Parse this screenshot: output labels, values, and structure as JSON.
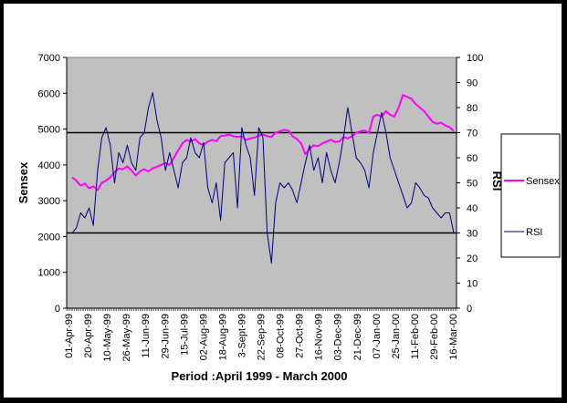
{
  "chart_data": {
    "type": "line",
    "xlabel": "Period :April 1999 - March 2000",
    "y_left_label": "Sensex",
    "y_right_label": "RSI",
    "y_left_lim": [
      0,
      7000
    ],
    "y_left_ticks": [
      "0",
      "1000",
      "2000",
      "3000",
      "4000",
      "5000",
      "6000",
      "7000"
    ],
    "y_right_lim": [
      0,
      100
    ],
    "y_right_ticks": [
      "0",
      "10",
      "20",
      "30",
      "40",
      "50",
      "60",
      "70",
      "80",
      "90",
      "100"
    ],
    "x_tick_labels": [
      "01-Apr-99",
      "20-Apr-99",
      "10-May-99",
      "26-May-99",
      "11-Jun-99",
      "29-Jun-99",
      "15-Jul-99",
      "02-Aug-99",
      "18-Aug-99",
      "3-Sept-99",
      "22-Sep-99",
      "08-Oct-99",
      "27-Oct-99",
      "16-Nov-99",
      "03-Dec-99",
      "21-Dec-99",
      "07-Jan-00",
      "25-Jan-00",
      "11-Feb-00",
      "29-Feb-00",
      "16-Mar-00"
    ],
    "reference_lines_rsi": [
      30,
      70
    ],
    "legend_position": "right",
    "grid": false,
    "colors": {
      "plot_bg": "#C0C0C0",
      "sensex": "#FF00FF",
      "rsi": "#000080",
      "ref_line": "#000000"
    },
    "series": [
      {
        "name": "Sensex",
        "axis": "left",
        "values": [
          3650,
          3560,
          3420,
          3480,
          3350,
          3400,
          3300,
          3500,
          3560,
          3650,
          3800,
          3900,
          3880,
          3960,
          3850,
          3700,
          3820,
          3880,
          3820,
          3900,
          3950,
          4000,
          4050,
          4000,
          4200,
          4400,
          4600,
          4700,
          4650,
          4720,
          4600,
          4560,
          4650,
          4700,
          4660,
          4800,
          4820,
          4850,
          4800,
          4780,
          4800,
          4700,
          4740,
          4760,
          4820,
          4850,
          4800,
          4780,
          4900,
          4940,
          4980,
          4950,
          4800,
          4720,
          4600,
          4300,
          4450,
          4550,
          4520,
          4600,
          4650,
          4700,
          4640,
          4650,
          4780,
          4740,
          4800,
          4900,
          4940,
          4960,
          4900,
          5350,
          5400,
          5350,
          5500,
          5400,
          5350,
          5600,
          5950,
          5900,
          5850,
          5700,
          5600,
          5500,
          5350,
          5200,
          5150,
          5180,
          5100,
          5050,
          4950
        ]
      },
      {
        "name": "RSI",
        "axis": "right",
        "values": [
          30,
          32,
          38,
          36,
          40,
          33,
          55,
          68,
          72,
          65,
          50,
          62,
          58,
          65,
          58,
          55,
          68,
          70,
          80,
          86,
          75,
          68,
          55,
          62,
          55,
          48,
          58,
          60,
          68,
          62,
          60,
          66,
          48,
          42,
          50,
          35,
          58,
          60,
          62,
          40,
          72,
          65,
          60,
          45,
          72,
          68,
          30,
          18,
          42,
          50,
          48,
          50,
          47,
          42,
          50,
          58,
          65,
          55,
          60,
          50,
          62,
          55,
          50,
          58,
          68,
          80,
          70,
          60,
          58,
          55,
          48,
          62,
          70,
          78,
          70,
          60,
          55,
          50,
          45,
          40,
          42,
          50,
          48,
          45,
          44,
          40,
          38,
          36,
          38,
          38,
          30
        ]
      }
    ]
  }
}
